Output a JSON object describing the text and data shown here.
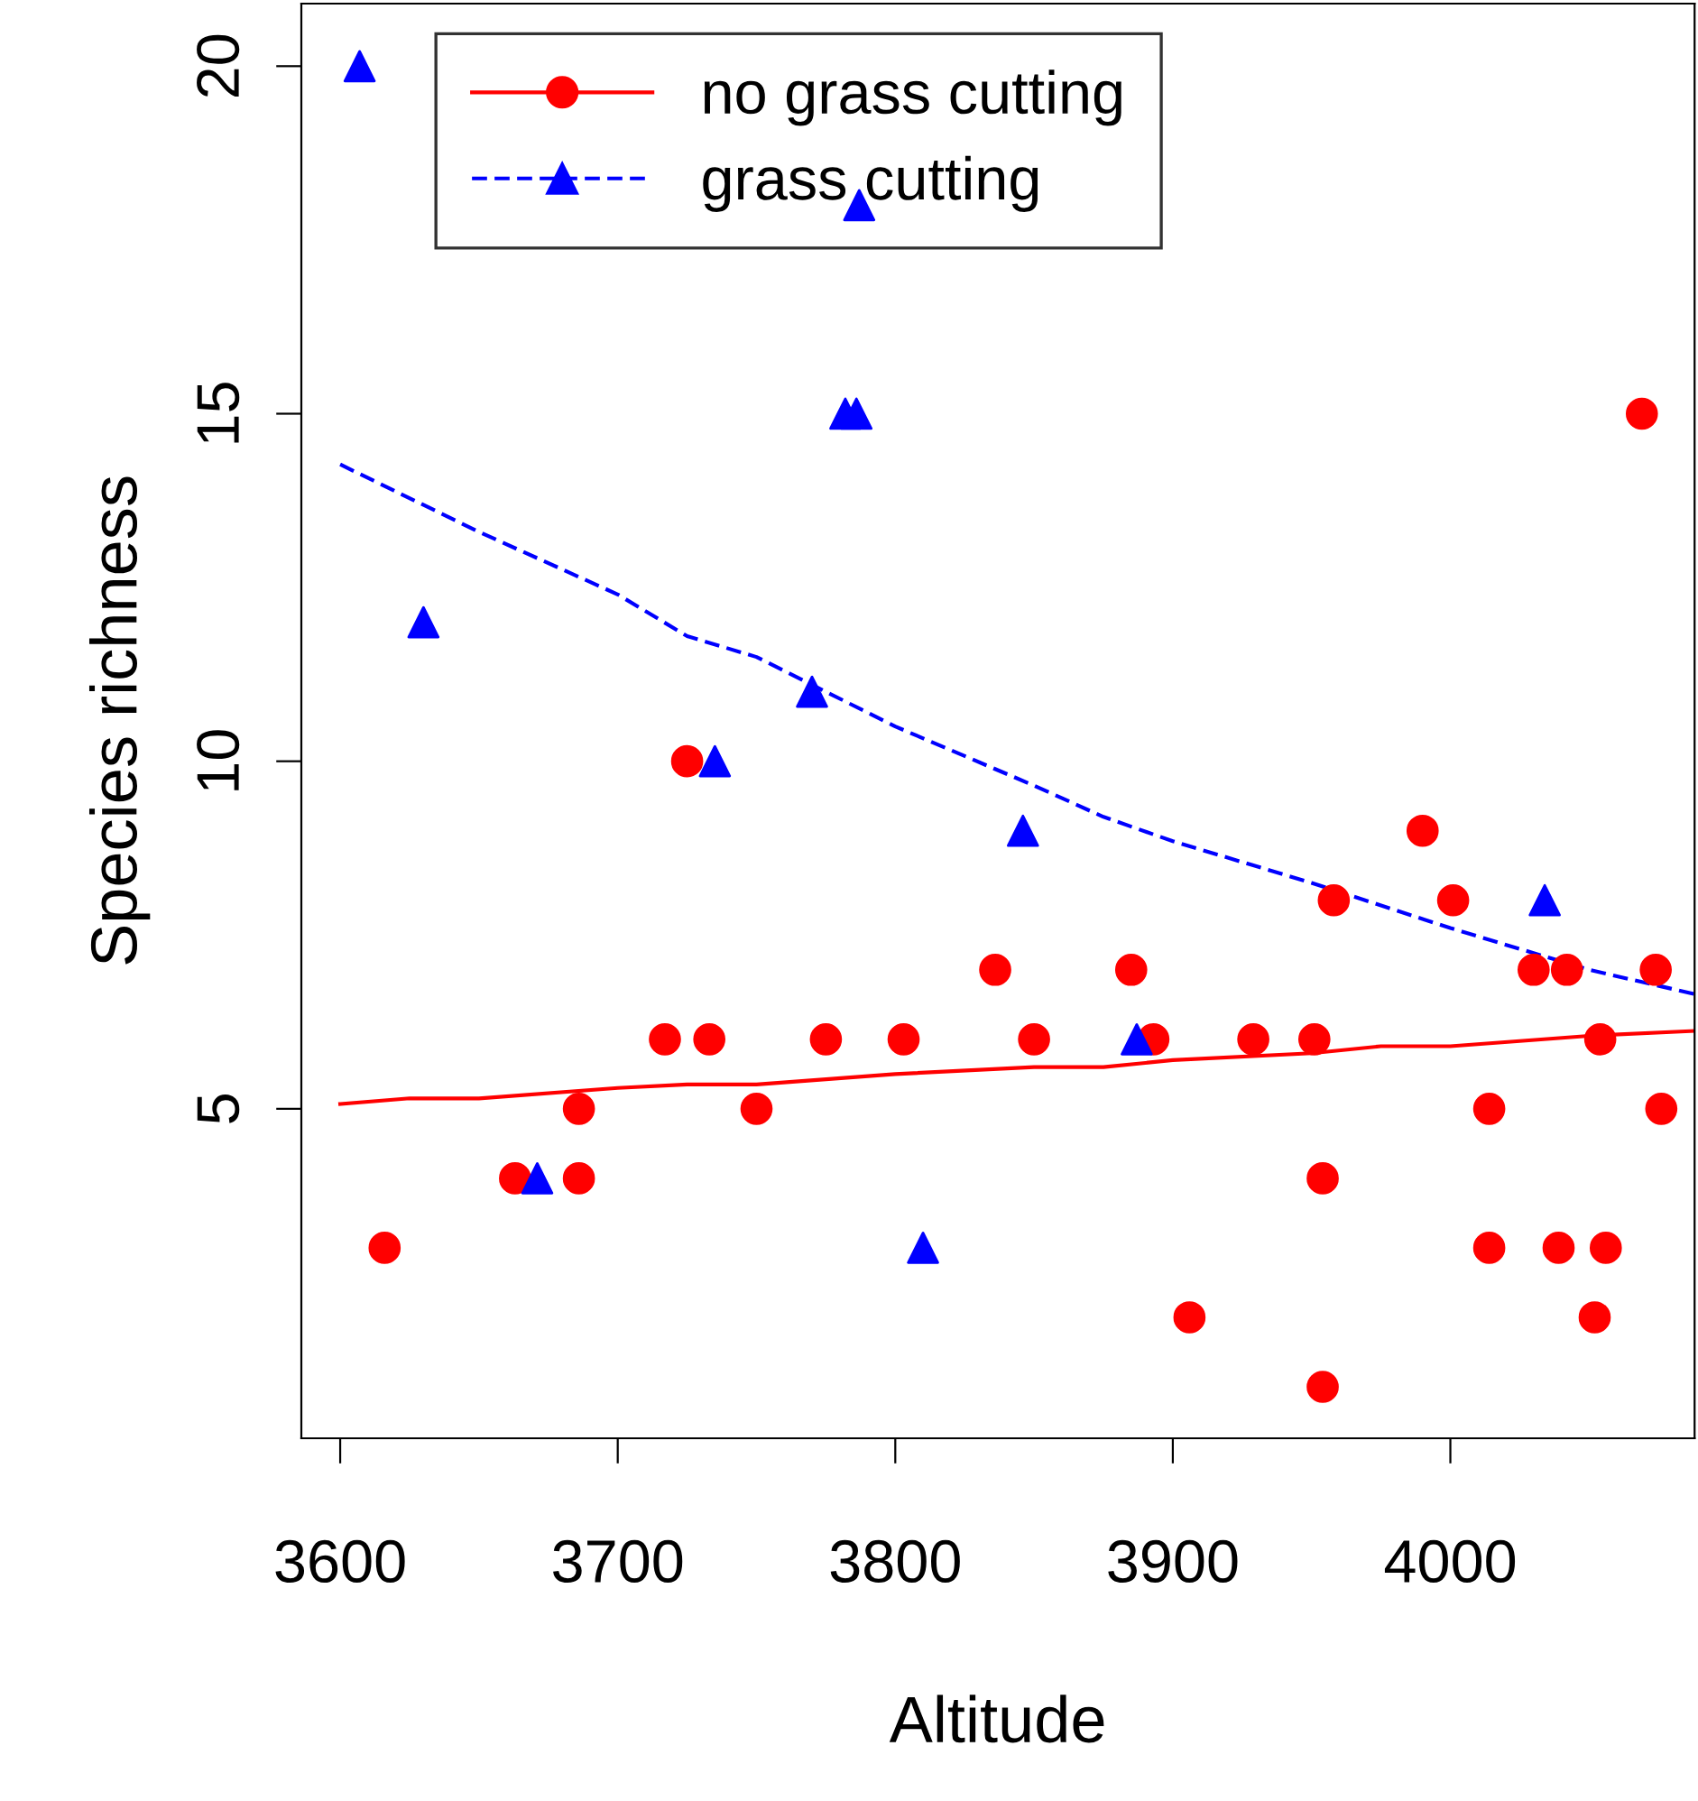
{
  "chart_data": {
    "type": "scatter",
    "xlabel": "Altitude",
    "ylabel": "Species richness",
    "xlim": [
      3586,
      4088
    ],
    "ylim": [
      0.26,
      20.9
    ],
    "xticks": [
      3600,
      3700,
      3800,
      3900,
      4000
    ],
    "yticks": [
      5,
      10,
      15,
      20
    ],
    "grid": false,
    "legend": "top left",
    "series": [
      {
        "name": "no grass cutting",
        "color": "#ff0000",
        "marker": "circle",
        "x": [
          3616,
          3663,
          3686,
          3686,
          3717,
          3733,
          3725,
          3750,
          3775,
          3803,
          3836,
          3850,
          3885,
          3893,
          3906,
          3929,
          3951,
          3954,
          3954,
          3958,
          3990,
          4001,
          4014,
          4014,
          4030,
          4039,
          4042,
          4052,
          4054,
          4056,
          4069,
          4074,
          4076
        ],
        "values": [
          3,
          4,
          4,
          5,
          6,
          6,
          10,
          5,
          6,
          6,
          7,
          6,
          7,
          6,
          2,
          6,
          6,
          4,
          1,
          8,
          9,
          8,
          5,
          3,
          7,
          3,
          7,
          2,
          6,
          3,
          15,
          7,
          5
        ]
      },
      {
        "type": "line",
        "color": "#ff0000",
        "line_style": "solid",
        "x": [
          3600,
          3625,
          3650,
          3700,
          3725,
          3750,
          3800,
          3850,
          3875,
          3900,
          3950,
          3975,
          4000,
          4050,
          4088
        ],
        "values": [
          5.07,
          5.15,
          5.15,
          5.3,
          5.35,
          5.35,
          5.5,
          5.6,
          5.6,
          5.7,
          5.8,
          5.9,
          5.9,
          6.05,
          6.12
        ]
      },
      {
        "name": "grass cutting",
        "color": "#0000ff",
        "marker": "triangle",
        "x": [
          3607,
          3630,
          3671,
          3735,
          3770,
          3782,
          3786,
          3787,
          3810,
          3846,
          3887,
          4034
        ],
        "values": [
          20,
          12,
          4,
          10,
          11,
          15,
          15,
          18,
          3,
          9,
          6,
          8
        ]
      },
      {
        "type": "line",
        "color": "#0000ff",
        "line_style": "dashed",
        "x": [
          3600,
          3650,
          3700,
          3725,
          3750,
          3800,
          3850,
          3875,
          3900,
          3950,
          4000,
          4050,
          4088
        ],
        "values": [
          14.27,
          13.3,
          12.4,
          11.8,
          11.5,
          10.5,
          9.65,
          9.2,
          8.85,
          8.25,
          7.6,
          7.0,
          6.65
        ]
      }
    ]
  }
}
